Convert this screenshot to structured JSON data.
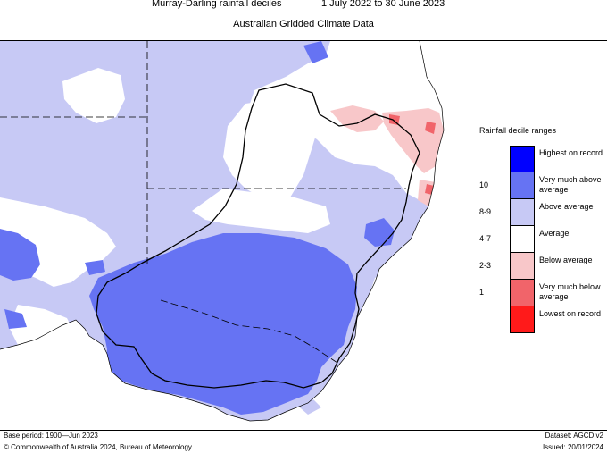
{
  "header": {
    "title_left": "Murray-Darling rainfall deciles",
    "title_right": "1 July 2022 to 30 June 2023",
    "subtitle": "Australian Gridded Climate Data"
  },
  "legend": {
    "title": "Rainfall decile ranges",
    "items": [
      {
        "deciles": "",
        "label": "Highest on record",
        "color": "#0000ff"
      },
      {
        "deciles": "10",
        "label": "Very much above average",
        "color": "#6673f3"
      },
      {
        "deciles": "8-9",
        "label": "Above average",
        "color": "#c7c9f5"
      },
      {
        "deciles": "4-7",
        "label": "Average",
        "color": "#ffffff"
      },
      {
        "deciles": "2-3",
        "label": "Below average",
        "color": "#f8c7c9"
      },
      {
        "deciles": "1",
        "label": "Very much below average",
        "color": "#f1646a"
      },
      {
        "deciles": "",
        "label": "Lowest on record",
        "color": "#ff1a1a"
      }
    ]
  },
  "footer": {
    "base_period": "Base period: 1900—Jun 2023",
    "dataset": "Dataset: AGCD v2",
    "copyright": "© Commonwealth of Australia 2024, Bureau of Meteorology",
    "issued": "Issued: 20/01/2024"
  },
  "colors": {
    "ocean": "#ffffff",
    "boundary": "#000000"
  }
}
